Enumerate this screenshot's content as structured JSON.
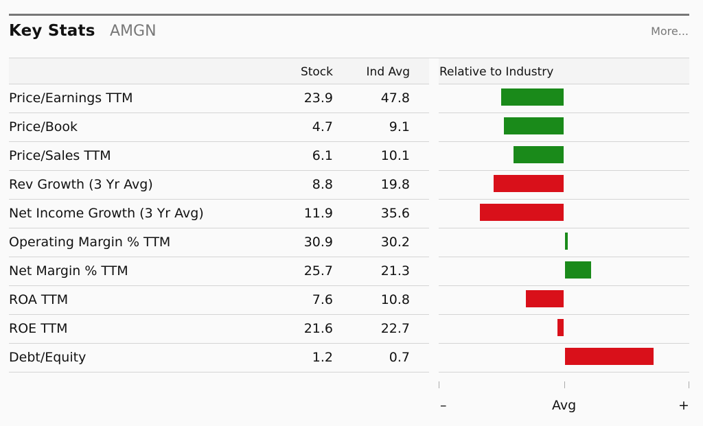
{
  "header": {
    "title": "Key Stats",
    "ticker": "AMGN",
    "more_label": "More..."
  },
  "table": {
    "columns": {
      "stock": "Stock",
      "ind_avg": "Ind Avg"
    },
    "rows": [
      {
        "metric": "Price/Earnings TTM",
        "stock": "23.9",
        "ind_avg": "47.8"
      },
      {
        "metric": "Price/Book",
        "stock": "4.7",
        "ind_avg": "9.1"
      },
      {
        "metric": "Price/Sales TTM",
        "stock": "6.1",
        "ind_avg": "10.1"
      },
      {
        "metric": "Rev Growth (3 Yr Avg)",
        "stock": "8.8",
        "ind_avg": "19.8"
      },
      {
        "metric": "Net Income Growth (3 Yr Avg)",
        "stock": "11.9",
        "ind_avg": "35.6"
      },
      {
        "metric": "Operating Margin % TTM",
        "stock": "30.9",
        "ind_avg": "30.2"
      },
      {
        "metric": "Net Margin % TTM",
        "stock": "25.7",
        "ind_avg": "21.3"
      },
      {
        "metric": "ROA TTM",
        "stock": "7.6",
        "ind_avg": "10.8"
      },
      {
        "metric": "ROE TTM",
        "stock": "21.6",
        "ind_avg": "22.7"
      },
      {
        "metric": "Debt/Equity",
        "stock": "1.2",
        "ind_avg": "0.7"
      }
    ]
  },
  "relative": {
    "title": "Relative to Industry",
    "colors": {
      "favorable": "#1a8a1a",
      "unfavorable": "#d9101a"
    },
    "bars": [
      {
        "relative": -0.5,
        "favorable": true
      },
      {
        "relative": -0.48,
        "favorable": true
      },
      {
        "relative": -0.4,
        "favorable": true
      },
      {
        "relative": -0.56,
        "favorable": false
      },
      {
        "relative": -0.67,
        "favorable": false
      },
      {
        "relative": 0.02,
        "favorable": true
      },
      {
        "relative": 0.21,
        "favorable": true
      },
      {
        "relative": -0.3,
        "favorable": false
      },
      {
        "relative": -0.05,
        "favorable": false
      },
      {
        "relative": 0.71,
        "favorable": false
      }
    ],
    "scale": {
      "minus_label": "–",
      "avg_label": "Avg",
      "plus_label": "+"
    }
  }
}
